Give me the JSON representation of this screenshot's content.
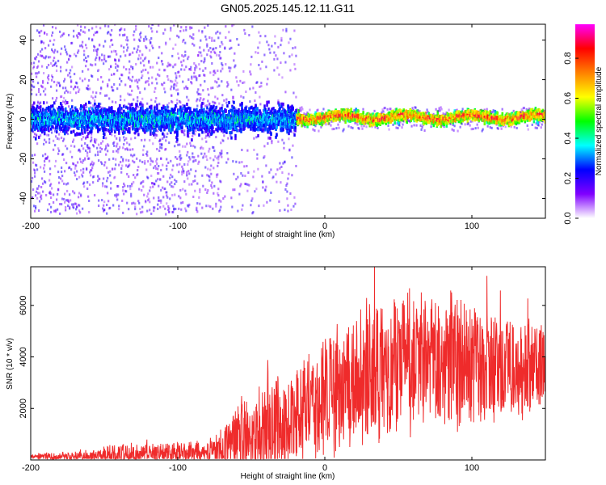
{
  "title": "GN05.2025.145.12.11.G11",
  "chart_data": [
    {
      "type": "heatmap",
      "xlabel": "Height of straight line (km)",
      "ylabel": "Frequency (Hz)",
      "xlim": [
        -200,
        150
      ],
      "ylim": [
        -50,
        48
      ],
      "xticks": [
        -200,
        -100,
        0,
        100
      ],
      "yticks": [
        -40,
        -20,
        0,
        20,
        40
      ],
      "colorbar": {
        "label": "Normalized spectral amplitude",
        "range": [
          0,
          0.97
        ],
        "ticks": [
          0.0,
          0.2,
          0.4,
          0.6,
          0.8
        ],
        "colors": [
          "#ffffff",
          "#8000ff",
          "#0000ff",
          "#00ffff",
          "#00ff00",
          "#ffff00",
          "#ff8000",
          "#ff0000",
          "#ff00ff"
        ]
      },
      "ridge": {
        "x_start": -200,
        "x_end": 150,
        "center_hz": 0,
        "noisy_region_end_km": -20,
        "noise_band_hz": [
          -50,
          48
        ],
        "strong_band_hz": 4
      }
    },
    {
      "type": "line",
      "xlabel": "Height of straight line (km)",
      "ylabel": "SNR (10 * v/v)",
      "xlim": [
        -200,
        150
      ],
      "ylim": [
        0,
        7500
      ],
      "xticks": [
        -200,
        -100,
        0,
        100
      ],
      "yticks": [
        2000,
        4000,
        6000
      ],
      "color": "#ef2b2b",
      "envelope": [
        {
          "x": -200,
          "base": 120,
          "spread": 150
        },
        {
          "x": -160,
          "base": 150,
          "spread": 250
        },
        {
          "x": -140,
          "base": 250,
          "spread": 550
        },
        {
          "x": -120,
          "base": 250,
          "spread": 450
        },
        {
          "x": -100,
          "base": 300,
          "spread": 600
        },
        {
          "x": -80,
          "base": 300,
          "spread": 550
        },
        {
          "x": -70,
          "base": 400,
          "spread": 900
        },
        {
          "x": -60,
          "base": 800,
          "spread": 1800
        },
        {
          "x": -40,
          "base": 1200,
          "spread": 2200
        },
        {
          "x": -20,
          "base": 1700,
          "spread": 2600
        },
        {
          "x": 0,
          "base": 2500,
          "spread": 3000
        },
        {
          "x": 20,
          "base": 3200,
          "spread": 3400
        },
        {
          "x": 40,
          "base": 3700,
          "spread": 3600
        },
        {
          "x": 60,
          "base": 3900,
          "spread": 3700
        },
        {
          "x": 80,
          "base": 3900,
          "spread": 3500
        },
        {
          "x": 100,
          "base": 3700,
          "spread": 3200
        },
        {
          "x": 120,
          "base": 3600,
          "spread": 2600
        },
        {
          "x": 150,
          "base": 3700,
          "spread": 2200
        }
      ]
    }
  ]
}
